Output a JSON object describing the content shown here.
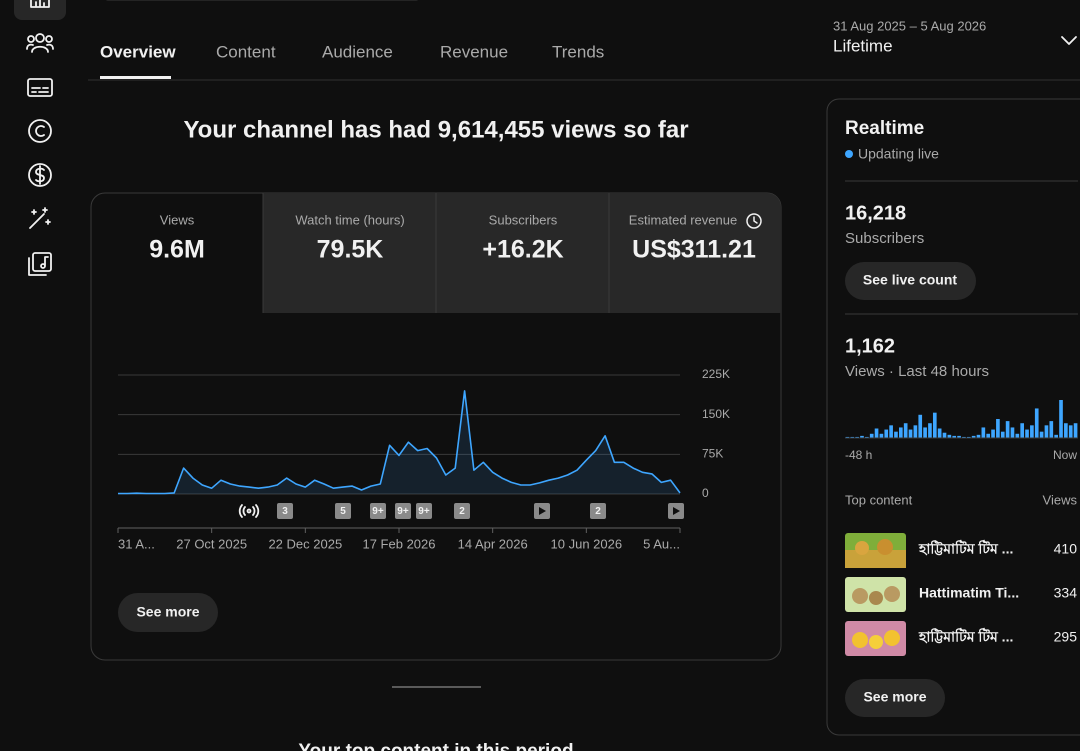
{
  "tabs": [
    "Overview",
    "Content",
    "Audience",
    "Revenue",
    "Trends"
  ],
  "date_range": {
    "range": "31 Aug 2025 – 5 Aug 2026",
    "period": "Lifetime"
  },
  "headline": "Your channel has had 9,614,455 views so far",
  "metrics": [
    {
      "label": "Views",
      "value": "9.6M"
    },
    {
      "label": "Watch time (hours)",
      "value": "79.5K"
    },
    {
      "label": "Subscribers",
      "value": "+16.2K"
    },
    {
      "label": "Estimated revenue",
      "value": "US$311.21"
    }
  ],
  "chart_data": [
    {
      "type": "line",
      "categories": [
        "31 A...",
        null,
        null,
        null,
        null,
        null,
        null,
        null,
        null,
        null,
        "27 Oct 2025",
        null,
        null,
        null,
        null,
        null,
        null,
        null,
        null,
        null,
        "22 Dec 2025",
        null,
        null,
        null,
        null,
        null,
        null,
        null,
        null,
        null,
        "17 Feb 2026",
        null,
        null,
        null,
        null,
        null,
        null,
        null,
        null,
        null,
        "14 Apr 2026",
        null,
        null,
        null,
        null,
        null,
        null,
        null,
        null,
        null,
        "10 Jun 2026",
        null,
        null,
        null,
        null,
        null,
        null,
        null,
        null,
        null,
        "5 Au..."
      ],
      "values": [
        1000,
        1000,
        1500,
        1000,
        1000,
        1000,
        2000,
        49000,
        30000,
        17000,
        11000,
        26000,
        19000,
        15000,
        13000,
        11000,
        13000,
        17000,
        30000,
        19000,
        13000,
        26000,
        19000,
        11000,
        13000,
        15000,
        7500,
        15000,
        19000,
        92000,
        73000,
        98000,
        82000,
        86000,
        68000,
        36000,
        49000,
        195000,
        45000,
        60000,
        41000,
        30000,
        22000,
        17000,
        17000,
        21000,
        26000,
        30000,
        36000,
        45000,
        64000,
        82000,
        110000,
        60000,
        60000,
        49000,
        41000,
        38000,
        22000,
        26000,
        2000
      ],
      "color": "#3ea6ff",
      "ylim": [
        0,
        225000
      ],
      "yticks": [
        0,
        {
          "value": 75000,
          "label": "75K"
        },
        {
          "value": 150000,
          "label": "150K"
        },
        {
          "value": 225000,
          "label": "225K"
        }
      ],
      "grid": true
    },
    {
      "type": "bar",
      "categories": [
        "-48 h",
        null,
        null,
        null,
        null,
        null,
        null,
        null,
        null,
        null,
        null,
        null,
        null,
        null,
        null,
        null,
        null,
        null,
        null,
        null,
        null,
        null,
        null,
        null,
        null,
        null,
        null,
        null,
        null,
        null,
        null,
        null,
        null,
        null,
        null,
        null,
        null,
        null,
        null,
        null,
        null,
        null,
        null,
        null,
        null,
        null,
        null,
        "Now"
      ],
      "values": [
        1,
        1,
        1,
        2,
        1,
        4,
        9,
        4,
        8,
        12,
        6,
        10,
        14,
        8,
        12,
        22,
        10,
        14,
        24,
        9,
        5,
        3,
        2,
        2,
        1,
        1,
        2,
        3,
        10,
        4,
        8,
        18,
        6,
        16,
        10,
        4,
        14,
        8,
        12,
        28,
        6,
        12,
        16,
        3,
        36,
        14,
        12,
        14
      ],
      "color": "#3ea6ff"
    }
  ],
  "chart_markers": [
    "3",
    "5",
    "9+",
    "9+",
    "9+",
    "2",
    "2"
  ],
  "see_more": "See more",
  "section_title": "Your top content in this period",
  "realtime": {
    "title": "Realtime",
    "status": "Updating live",
    "subscribers": {
      "value": "16,218",
      "label": "Subscribers"
    },
    "live_count_button": "See live count",
    "views": {
      "value": "1,162",
      "label": "Views · Last 48 hours"
    },
    "top_content": {
      "title": "Top content",
      "views_header": "Views",
      "items": [
        {
          "title": "হাট্টিমাটিম টিম ...",
          "views": "410"
        },
        {
          "title": "Hattimatim Ti...",
          "views": "334"
        },
        {
          "title": "হাট্টিমাটিম টিম ...",
          "views": "295"
        }
      ]
    },
    "see_more": "See more"
  }
}
